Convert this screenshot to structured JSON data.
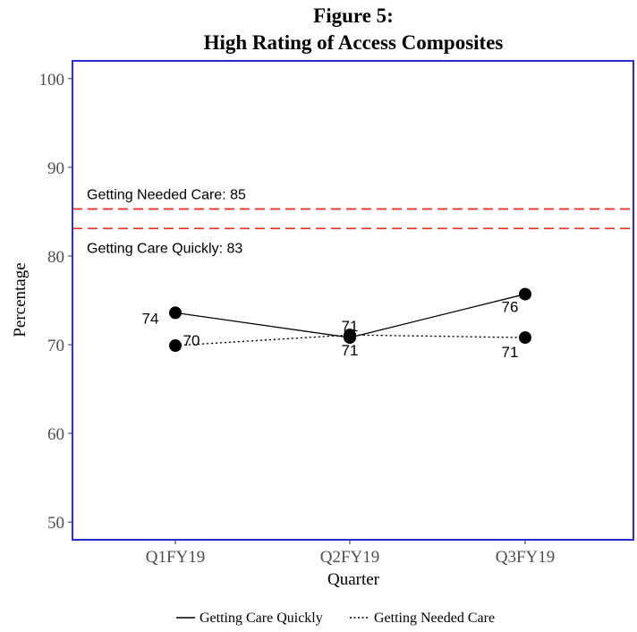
{
  "chart_data": {
    "type": "line",
    "title": "Figure 5:",
    "subtitle": "High Rating of Access Composites",
    "xlabel": "Quarter",
    "ylabel": "Percentage",
    "categories": [
      "Q1FY19",
      "Q2FY19",
      "Q3FY19"
    ],
    "ylim": [
      48,
      102
    ],
    "yticks": [
      50,
      60,
      70,
      80,
      90,
      100
    ],
    "grid": false,
    "legend_position": "bottom",
    "series": [
      {
        "name": "Getting Care Quickly",
        "line_style": "solid",
        "values": [
          73.6,
          70.8,
          75.7
        ],
        "labels": [
          "74",
          "71",
          "76"
        ]
      },
      {
        "name": "Getting Needed Care",
        "line_style": "dotted",
        "values": [
          69.9,
          71.1,
          70.8
        ],
        "labels": [
          "70",
          "71",
          "71"
        ]
      }
    ],
    "reference_lines": [
      {
        "value": 85.3,
        "label": "Getting Needed Care: 85",
        "color": "#e8352b"
      },
      {
        "value": 83.1,
        "label": "Getting Care Quickly: 83",
        "color": "#e8352b"
      }
    ],
    "colors": {
      "frame": "#2b2bd6",
      "points": "#000000",
      "reference": "#e8352b"
    }
  }
}
